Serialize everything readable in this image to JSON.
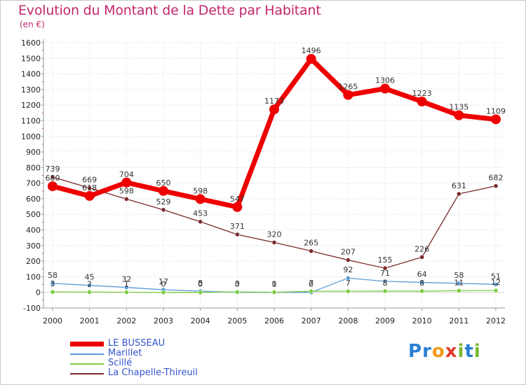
{
  "title": "Evolution du Montant de la Dette par Habitant",
  "unit": "(en €)",
  "logo": {
    "text": "Proxiti",
    "letters": [
      "P",
      "r",
      "o",
      "x",
      "i",
      "t",
      "i"
    ],
    "colors": [
      "#2a7fd4",
      "#2a7fd4",
      "#f29a1a",
      "#e33a2a",
      "#79b82b",
      "#2a7fd4",
      "#79b82b"
    ]
  },
  "chart_data": {
    "type": "line",
    "title": "Evolution du Montant de la Dette par Habitant",
    "ylabel": "(en €)",
    "xlabel": "",
    "categories": [
      "2000",
      "2001",
      "2002",
      "2003",
      "2004",
      "2005",
      "2006",
      "2007",
      "2008",
      "2009",
      "2010",
      "2011",
      "2012"
    ],
    "ylim": [
      -100,
      1600
    ],
    "yticks": [
      -100,
      0,
      100,
      200,
      300,
      400,
      500,
      600,
      700,
      800,
      900,
      1000,
      1100,
      1200,
      1300,
      1400,
      1500,
      1600
    ],
    "grid": true,
    "legend_position": "bottom-left",
    "series": [
      {
        "name": "LE BUSSEAU",
        "color": "#ee0000",
        "width": "thick",
        "values": [
          680,
          618,
          704,
          650,
          598,
          547,
          1173,
          1496,
          1265,
          1306,
          1223,
          1135,
          1109
        ],
        "labels": [
          "680",
          "618",
          "704",
          "650",
          "598",
          "547",
          "1173",
          "1496",
          "1265",
          "1306",
          "1223",
          "1135",
          "1109"
        ]
      },
      {
        "name": "Marillet",
        "color": "#5b9bd5",
        "width": "thin",
        "values": [
          58,
          45,
          32,
          17,
          8,
          0,
          0,
          0,
          92,
          71,
          64,
          58,
          51
        ],
        "labels": [
          "58",
          "45",
          "32",
          "17",
          "8",
          "0",
          "0",
          "0",
          "92",
          "71",
          "64",
          "58",
          "51"
        ]
      },
      {
        "name": "Scillé",
        "color": "#7ccd40",
        "width": "thin",
        "values": [
          3,
          2,
          1,
          0,
          0,
          3,
          1,
          7,
          7,
          8,
          8,
          11,
          12
        ],
        "labels": [
          "3",
          "2",
          "1",
          "0",
          "0",
          "3",
          "1",
          "7",
          "7",
          "8",
          "8",
          "11",
          "12"
        ]
      },
      {
        "name": "La Chapelle-Thireuil",
        "color": "#7a2a2a",
        "width": "thin",
        "values": [
          739,
          669,
          598,
          529,
          453,
          371,
          320,
          265,
          207,
          155,
          226,
          631,
          682
        ],
        "labels": [
          "739",
          "669",
          "598",
          "529",
          "453",
          "371",
          "320",
          "265",
          "207",
          "155",
          "226",
          "631",
          "682"
        ]
      }
    ]
  }
}
